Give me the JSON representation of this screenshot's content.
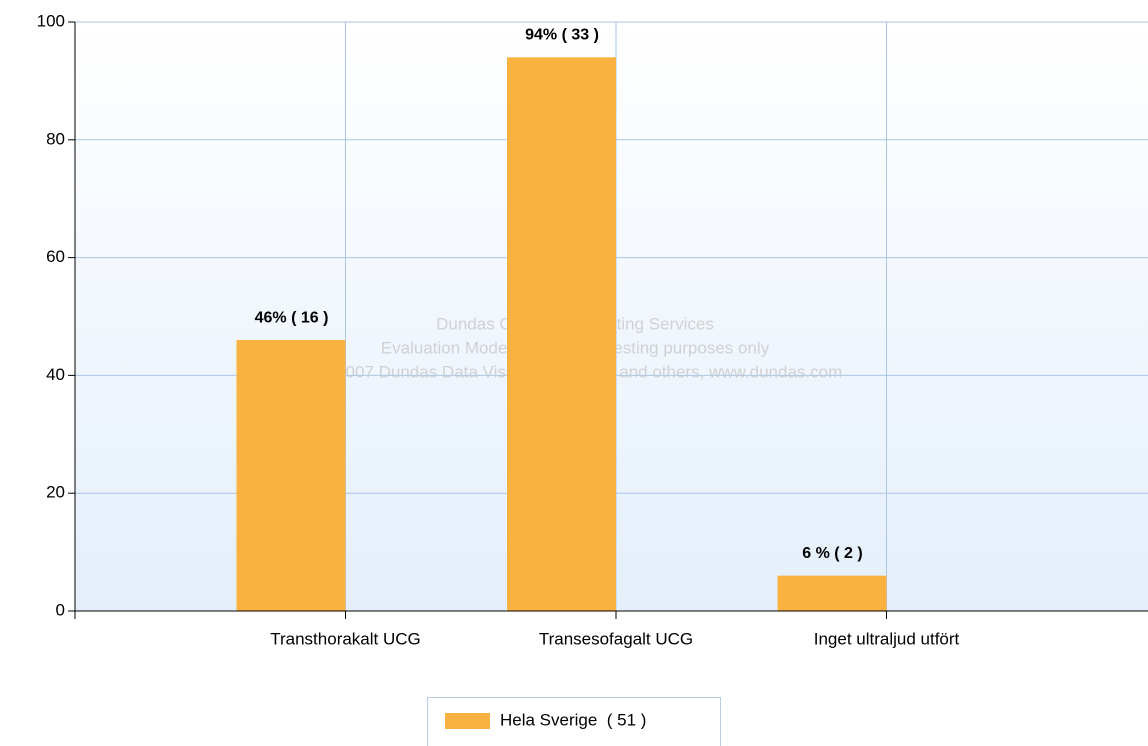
{
  "chart_data": {
    "type": "bar",
    "categories": [
      "Transthorakalt UCG",
      "Transesofagalt UCG",
      "Inget ultraljud utfört"
    ],
    "series": [
      {
        "name": "Hela Sverige  ( 51 )",
        "color": "#f9b140",
        "values": [
          46,
          94,
          6
        ],
        "value_labels": [
          "46% ( 16 )",
          "94% ( 33 )",
          "6 % ( 2 )"
        ]
      }
    ],
    "ylim": [
      0,
      100
    ],
    "yticks": [
      0,
      20,
      40,
      60,
      80,
      100
    ],
    "grid": true,
    "annotations": [
      "Dundas Chart for Reporting Services",
      "Evaluation Mode Enabled, for testing purposes only",
      "(C) 2007 Dundas Data Visualization, Inc. and others, www.dundas.com"
    ]
  }
}
